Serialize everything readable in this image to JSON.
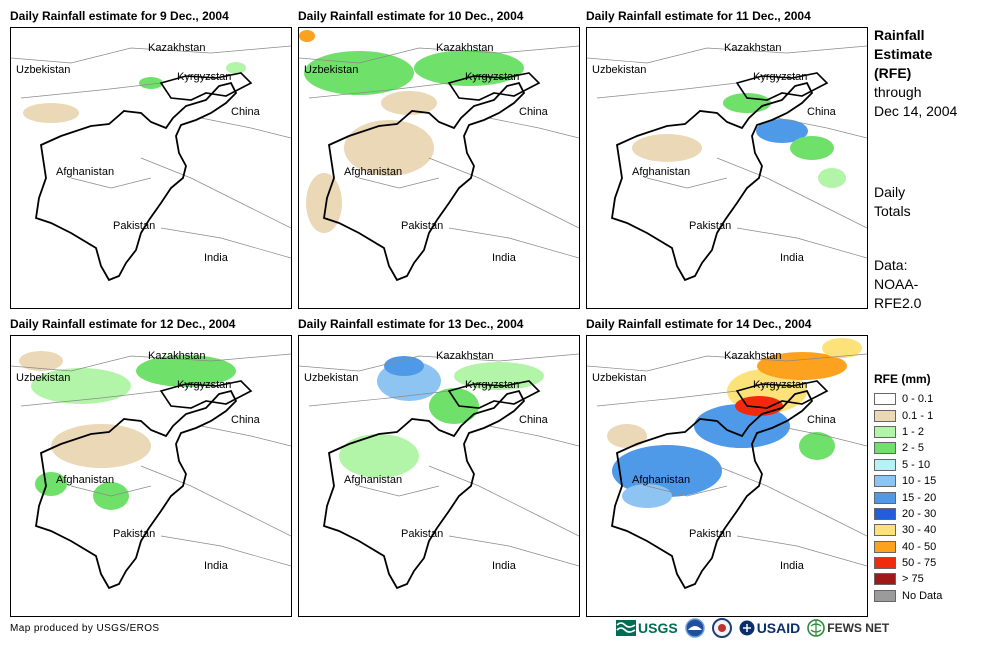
{
  "panels": [
    {
      "title": "Daily Rainfall estimate for 9 Dec., 2004"
    },
    {
      "title": "Daily Rainfall estimate for 10 Dec., 2004"
    },
    {
      "title": "Daily Rainfall estimate for 11 Dec., 2004"
    },
    {
      "title": "Daily Rainfall estimate for 12 Dec., 2004"
    },
    {
      "title": "Daily Rainfall estimate for 13 Dec., 2004"
    },
    {
      "title": "Daily Rainfall estimate for 14 Dec., 2004"
    }
  ],
  "places": {
    "kazakhstan": "Kazakhstan",
    "uzbekistan": "Uzbekistan",
    "kyrgyzstan": "Kyrgyzstan",
    "china": "China",
    "afghanistan": "Afghanistan",
    "pakistan": "Pakistan",
    "india": "India"
  },
  "sidebar": {
    "heading_1": "Rainfall",
    "heading_2": "Estimate",
    "heading_3": "(RFE)",
    "through": "through",
    "date": "Dec 14, 2004",
    "totals_1": "Daily",
    "totals_2": "Totals",
    "data_1": "Data:",
    "data_2": "NOAA-",
    "data_3": "RFE2.0"
  },
  "legend": {
    "title": "RFE (mm)",
    "items": [
      {
        "label": "0 - 0.1",
        "color": "#ffffff"
      },
      {
        "label": "0.1 - 1",
        "color": "#ead8b6"
      },
      {
        "label": "1 - 2",
        "color": "#b3f5a8"
      },
      {
        "label": "2 - 5",
        "color": "#6fe06a"
      },
      {
        "label": "5 - 10",
        "color": "#b8f0f5"
      },
      {
        "label": "10 - 15",
        "color": "#8ec4f2"
      },
      {
        "label": "15 - 20",
        "color": "#4f9ae8"
      },
      {
        "label": "20 - 30",
        "color": "#1f5fd8"
      },
      {
        "label": "30 - 40",
        "color": "#fde27a"
      },
      {
        "label": "40 - 50",
        "color": "#fca21e"
      },
      {
        "label": "50 - 75",
        "color": "#f22a0d"
      },
      {
        "label": "> 75",
        "color": "#a01818"
      },
      {
        "label": "No Data",
        "color": "#9b9b9b"
      }
    ]
  },
  "footer": {
    "credit": "Map produced by USGS/EROS",
    "logo_usgs": "USGS",
    "logo_usaid": "USAID",
    "logo_fews": "FEWS NET"
  }
}
